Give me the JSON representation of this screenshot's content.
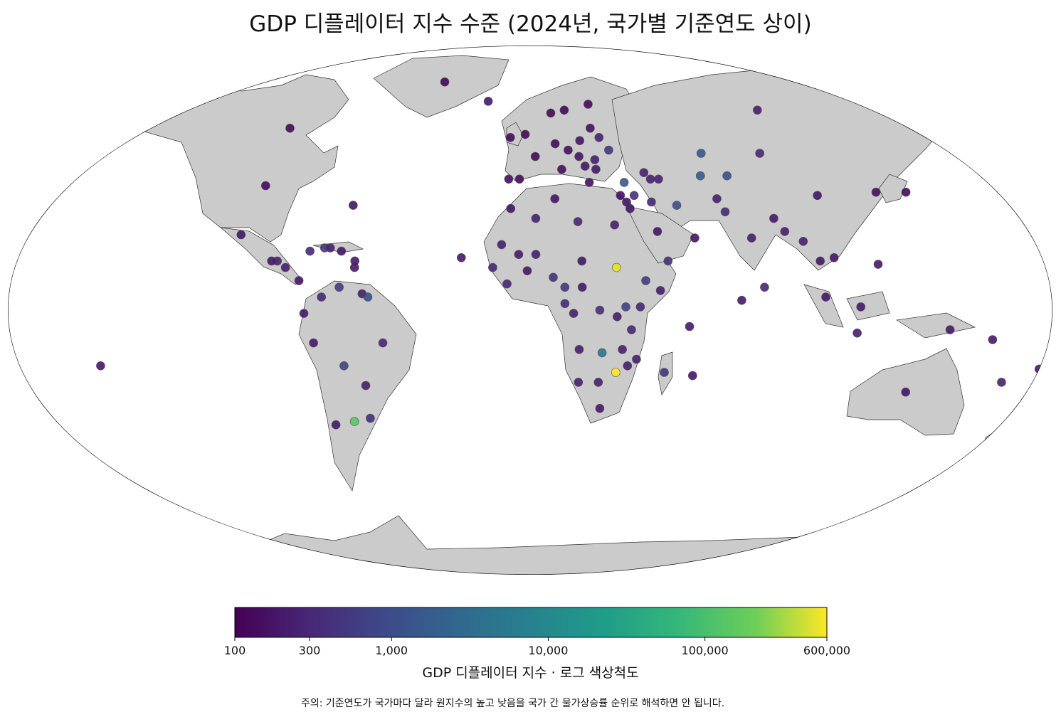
{
  "title": "GDP 디플레이터 지수 수준 (2024년, 국가별 기준연도 상이)",
  "colorbar": {
    "label": "GDP 디플레이터 지수 · 로그 색상척도",
    "ticks": [
      "100",
      "300",
      "1,000",
      "10,000",
      "100,000",
      "600,000"
    ],
    "tick_values": [
      100,
      300,
      1000,
      10000,
      100000,
      600000
    ],
    "range": [
      100,
      600000
    ],
    "scale": "log",
    "colormap": "viridis"
  },
  "note": "주의: 기준연도가 국가마다 달라 원지수의 높고 낮음을 국가 간 물가상승률 순위로 해석하면 안 됩니다.",
  "colors": {
    "land": "#cbcbcb",
    "ocean": "#ffffff",
    "border": "#333333"
  },
  "chart_data": {
    "type": "scatter",
    "projection": "Robinson",
    "color_scale": "log",
    "points": [
      {
        "lon": -100,
        "lat": 56,
        "v": 130
      },
      {
        "lon": -98,
        "lat": 38,
        "v": 130
      },
      {
        "lon": -102,
        "lat": 23,
        "v": 180
      },
      {
        "lon": -42,
        "lat": 72,
        "v": 120
      },
      {
        "lon": -19,
        "lat": 65,
        "v": 200
      },
      {
        "lon": -64,
        "lat": -34,
        "v": 150000
      },
      {
        "lon": 30,
        "lat": 13,
        "v": 500000
      },
      {
        "lon": 30,
        "lat": -19,
        "v": 600000
      },
      {
        "lon": 25,
        "lat": -13,
        "v": 5000
      },
      {
        "lon": 35,
        "lat": 39,
        "v": 1800
      },
      {
        "lon": 67,
        "lat": 48,
        "v": 1500
      },
      {
        "lon": 53,
        "lat": 32,
        "v": 1200
      },
      {
        "lon": 64,
        "lat": 41,
        "v": 1800
      },
      {
        "lon": 74,
        "lat": 41,
        "v": 1200
      },
      {
        "lon": 90,
        "lat": 48,
        "v": 300
      },
      {
        "lon": 100,
        "lat": 62,
        "v": 250
      },
      {
        "lon": 105,
        "lat": 35,
        "v": 180
      },
      {
        "lon": 78,
        "lat": 22,
        "v": 250
      },
      {
        "lon": 87,
        "lat": 28,
        "v": 200
      },
      {
        "lon": 90,
        "lat": 24,
        "v": 250
      },
      {
        "lon": 70,
        "lat": 30,
        "v": 350
      },
      {
        "lon": 68,
        "lat": 34,
        "v": 250
      },
      {
        "lon": 58,
        "lat": 22,
        "v": 180
      },
      {
        "lon": 45,
        "lat": 24,
        "v": 180
      },
      {
        "lon": 44,
        "lat": 33,
        "v": 300
      },
      {
        "lon": 38,
        "lat": 35,
        "v": 400
      },
      {
        "lon": 48,
        "lat": 15,
        "v": 400
      },
      {
        "lon": 40,
        "lat": 9,
        "v": 600
      },
      {
        "lon": 45,
        "lat": 6,
        "v": 220
      },
      {
        "lon": 38,
        "lat": 1,
        "v": 300
      },
      {
        "lon": 33,
        "lat": 1,
        "v": 700
      },
      {
        "lon": 35,
        "lat": -6,
        "v": 300
      },
      {
        "lon": 30,
        "lat": -2,
        "v": 250
      },
      {
        "lon": 18,
        "lat": 15,
        "v": 200
      },
      {
        "lon": 18,
        "lat": 7,
        "v": 200
      },
      {
        "lon": 12,
        "lat": 7,
        "v": 500
      },
      {
        "lon": 24,
        "lat": 0,
        "v": 400
      },
      {
        "lon": 15,
        "lat": -1,
        "v": 250
      },
      {
        "lon": 12,
        "lat": 2,
        "v": 350
      },
      {
        "lon": 8,
        "lat": 10,
        "v": 450
      },
      {
        "lon": 2,
        "lat": 17,
        "v": 250
      },
      {
        "lon": -4,
        "lat": 17,
        "v": 220
      },
      {
        "lon": -10,
        "lat": 20,
        "v": 250
      },
      {
        "lon": -13,
        "lat": 13,
        "v": 300
      },
      {
        "lon": -1,
        "lat": 12,
        "v": 200
      },
      {
        "lon": -8,
        "lat": 8,
        "v": 300
      },
      {
        "lon": 2,
        "lat": 28,
        "v": 250
      },
      {
        "lon": 17,
        "lat": 27,
        "v": 300
      },
      {
        "lon": 30,
        "lat": 26,
        "v": 250
      },
      {
        "lon": 9,
        "lat": 34,
        "v": 180
      },
      {
        "lon": -7,
        "lat": 31,
        "v": 180
      },
      {
        "lon": 17,
        "lat": -12,
        "v": 250
      },
      {
        "lon": 17,
        "lat": -22,
        "v": 250
      },
      {
        "lon": 24,
        "lat": -22,
        "v": 250
      },
      {
        "lon": 25,
        "lat": -30,
        "v": 200
      },
      {
        "lon": 34,
        "lat": -17,
        "v": 250
      },
      {
        "lon": 47,
        "lat": -19,
        "v": 450
      },
      {
        "lon": 32,
        "lat": -12,
        "v": 250
      },
      {
        "lon": 37,
        "lat": -15,
        "v": 250
      },
      {
        "lon": 133,
        "lat": -25,
        "v": 180
      },
      {
        "lon": 172,
        "lat": -41,
        "v": 180
      },
      {
        "lon": 145,
        "lat": -6,
        "v": 200
      },
      {
        "lon": 138,
        "lat": 36,
        "v": 130
      },
      {
        "lon": 127,
        "lat": 36,
        "v": 150
      },
      {
        "lon": 121,
        "lat": 14,
        "v": 200
      },
      {
        "lon": 114,
        "lat": 1,
        "v": 200
      },
      {
        "lon": 102,
        "lat": 4,
        "v": 200
      },
      {
        "lon": 101,
        "lat": 15,
        "v": 200
      },
      {
        "lon": 106,
        "lat": 16,
        "v": 200
      },
      {
        "lon": 96,
        "lat": 21,
        "v": 250
      },
      {
        "lon": 113,
        "lat": -7,
        "v": 250
      },
      {
        "lon": 81,
        "lat": 7,
        "v": 300
      },
      {
        "lon": 73,
        "lat": 3,
        "v": 200
      },
      {
        "lon": 57,
        "lat": -20,
        "v": 180
      },
      {
        "lon": 55,
        "lat": -5,
        "v": 200
      },
      {
        "lon": 166,
        "lat": -22,
        "v": 250
      },
      {
        "lon": 178,
        "lat": -18,
        "v": 200
      },
      {
        "lon": 160,
        "lat": -9,
        "v": 200
      },
      {
        "lon": -58,
        "lat": -33,
        "v": 400
      },
      {
        "lon": -51,
        "lat": -10,
        "v": 300
      },
      {
        "lon": -65,
        "lat": -17,
        "v": 800
      },
      {
        "lon": -75,
        "lat": -10,
        "v": 200
      },
      {
        "lon": -78,
        "lat": -1,
        "v": 200
      },
      {
        "lon": -72,
        "lat": 4,
        "v": 300
      },
      {
        "lon": -66,
        "lat": 7,
        "v": 600
      },
      {
        "lon": -71,
        "lat": -35,
        "v": 200
      },
      {
        "lon": -58,
        "lat": -23,
        "v": 250
      },
      {
        "lon": -58,
        "lat": 5,
        "v": 250
      },
      {
        "lon": -56,
        "lat": 4,
        "v": 1200
      },
      {
        "lon": -80,
        "lat": 9,
        "v": 200
      },
      {
        "lon": -85,
        "lat": 13,
        "v": 250
      },
      {
        "lon": -88,
        "lat": 15,
        "v": 250
      },
      {
        "lon": -90,
        "lat": 15,
        "v": 200
      },
      {
        "lon": -77,
        "lat": 18,
        "v": 300
      },
      {
        "lon": -72,
        "lat": 19,
        "v": 500
      },
      {
        "lon": -70,
        "lat": 19,
        "v": 250
      },
      {
        "lon": -66,
        "lat": 18,
        "v": 200
      },
      {
        "lon": -61,
        "lat": 13,
        "v": 200
      },
      {
        "lon": -61,
        "lat": 15,
        "v": 200
      },
      {
        "lon": -150,
        "lat": -17,
        "v": 200
      },
      {
        "lon": -64,
        "lat": 32,
        "v": 180
      },
      {
        "lon": -24,
        "lat": 16,
        "v": 200
      },
      {
        "lon": 2,
        "lat": 47,
        "v": 130
      },
      {
        "lon": 10,
        "lat": 51,
        "v": 130
      },
      {
        "lon": 12,
        "lat": 43,
        "v": 150
      },
      {
        "lon": -4,
        "lat": 40,
        "v": 140
      },
      {
        "lon": -8,
        "lat": 40,
        "v": 150
      },
      {
        "lon": -2,
        "lat": 54,
        "v": 130
      },
      {
        "lon": -8,
        "lat": 53,
        "v": 130
      },
      {
        "lon": 15,
        "lat": 62,
        "v": 130
      },
      {
        "lon": 9,
        "lat": 61,
        "v": 130
      },
      {
        "lon": 26,
        "lat": 64,
        "v": 130
      },
      {
        "lon": 20,
        "lat": 52,
        "v": 180
      },
      {
        "lon": 25,
        "lat": 56,
        "v": 160
      },
      {
        "lon": 31,
        "lat": 49,
        "v": 500
      },
      {
        "lon": 28,
        "lat": 53,
        "v": 250
      },
      {
        "lon": 25,
        "lat": 46,
        "v": 250
      },
      {
        "lon": 19,
        "lat": 47,
        "v": 200
      },
      {
        "lon": 15,
        "lat": 49,
        "v": 150
      },
      {
        "lon": 22,
        "lat": 39,
        "v": 150
      },
      {
        "lon": 21,
        "lat": 44,
        "v": 200
      },
      {
        "lon": 25,
        "lat": 43,
        "v": 200
      },
      {
        "lon": 45,
        "lat": 40,
        "v": 250
      },
      {
        "lon": 43,
        "lat": 42,
        "v": 250
      },
      {
        "lon": 48,
        "lat": 40,
        "v": 250
      },
      {
        "lon": 33,
        "lat": 35,
        "v": 150
      },
      {
        "lon": 36,
        "lat": 31,
        "v": 200
      },
      {
        "lon": 35,
        "lat": 33,
        "v": 200
      }
    ]
  }
}
